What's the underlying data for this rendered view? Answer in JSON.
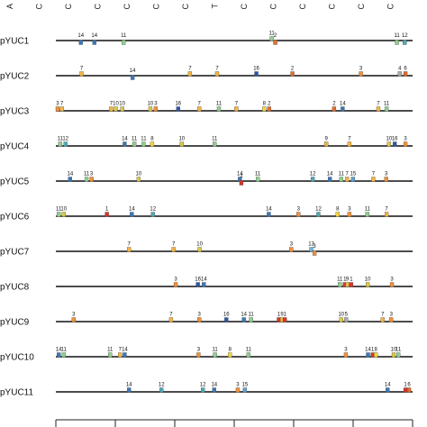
{
  "top_header": [
    "A",
    "C",
    "C",
    "C",
    "C",
    "C",
    "C",
    "T",
    "C",
    "C",
    "C",
    "C",
    "C",
    "C"
  ],
  "colors": {
    "1": "#d9342b",
    "2": "#e0702f",
    "3": "#f0913a",
    "6": "#e06a2e",
    "7": "#f3b544",
    "8": "#f2d640",
    "9": "#e6b83c",
    "10": "#d8c84a",
    "11": "#8fcf8f",
    "12": "#4fa9b5",
    "13": "#6fb6d8",
    "14": "#3b78b8",
    "15": "#5ea0d0",
    "16": "#2b55a8",
    "default": "#aaaaaa"
  },
  "promoters": [
    {
      "name": "pYUC1",
      "sites": [
        {
          "n": "14",
          "x": 0.07,
          "pos": "bot"
        },
        {
          "n": "14",
          "x": 0.108,
          "pos": "bot"
        },
        {
          "n": "11",
          "x": 0.19,
          "pos": "bot"
        },
        {
          "n": "11",
          "x": 0.605,
          "pos": "top"
        },
        {
          "n": "2",
          "x": 0.615,
          "pos": "bot"
        },
        {
          "n": "11",
          "x": 0.956,
          "pos": "bot"
        },
        {
          "n": "12",
          "x": 0.978,
          "pos": "bot"
        }
      ]
    },
    {
      "name": "pYUC2",
      "sites": [
        {
          "n": "7",
          "x": 0.072,
          "pos": "top"
        },
        {
          "n": "14",
          "x": 0.215,
          "pos": "bot"
        },
        {
          "n": "7",
          "x": 0.376,
          "pos": "top"
        },
        {
          "n": "7",
          "x": 0.452,
          "pos": "top"
        },
        {
          "n": "16",
          "x": 0.562,
          "pos": "top"
        },
        {
          "n": "2",
          "x": 0.663,
          "pos": "top"
        },
        {
          "n": "3",
          "x": 0.855,
          "pos": "top"
        },
        {
          "n": "4",
          "x": 0.964,
          "pos": "top"
        },
        {
          "n": "6",
          "x": 0.98,
          "pos": "top"
        }
      ]
    },
    {
      "name": "pYUC3",
      "sites": [
        {
          "n": "3",
          "x": 0.005,
          "pos": "top"
        },
        {
          "n": "7",
          "x": 0.017,
          "pos": "top"
        },
        {
          "n": "7",
          "x": 0.155,
          "pos": "top"
        },
        {
          "n": "10",
          "x": 0.168,
          "pos": "top"
        },
        {
          "n": "10",
          "x": 0.186,
          "pos": "top"
        },
        {
          "n": "10",
          "x": 0.265,
          "pos": "top"
        },
        {
          "n": "3",
          "x": 0.28,
          "pos": "top"
        },
        {
          "n": "16",
          "x": 0.343,
          "pos": "top"
        },
        {
          "n": "7",
          "x": 0.402,
          "pos": "top"
        },
        {
          "n": "11",
          "x": 0.457,
          "pos": "top"
        },
        {
          "n": "7",
          "x": 0.506,
          "pos": "top"
        },
        {
          "n": "8",
          "x": 0.584,
          "pos": "top"
        },
        {
          "n": "2",
          "x": 0.598,
          "pos": "top"
        },
        {
          "n": "2",
          "x": 0.78,
          "pos": "top"
        },
        {
          "n": "14",
          "x": 0.804,
          "pos": "top"
        },
        {
          "n": "7",
          "x": 0.904,
          "pos": "top"
        },
        {
          "n": "11",
          "x": 0.927,
          "pos": "top"
        }
      ]
    },
    {
      "name": "pYUC4",
      "sites": [
        {
          "n": "11",
          "x": 0.012,
          "pos": "top"
        },
        {
          "n": "12",
          "x": 0.027,
          "pos": "top"
        },
        {
          "n": "14",
          "x": 0.193,
          "pos": "top"
        },
        {
          "n": "11",
          "x": 0.22,
          "pos": "top"
        },
        {
          "n": "11",
          "x": 0.246,
          "pos": "top"
        },
        {
          "n": "8",
          "x": 0.27,
          "pos": "top"
        },
        {
          "n": "10",
          "x": 0.353,
          "pos": "top"
        },
        {
          "n": "11",
          "x": 0.445,
          "pos": "top"
        },
        {
          "n": "9",
          "x": 0.758,
          "pos": "top"
        },
        {
          "n": "7",
          "x": 0.823,
          "pos": "top"
        },
        {
          "n": "10",
          "x": 0.934,
          "pos": "top"
        },
        {
          "n": "16",
          "x": 0.95,
          "pos": "top"
        },
        {
          "n": "3",
          "x": 0.98,
          "pos": "top"
        }
      ]
    },
    {
      "name": "pYUC5",
      "sites": [
        {
          "n": "14",
          "x": 0.04,
          "pos": "top"
        },
        {
          "n": "11",
          "x": 0.086,
          "pos": "top"
        },
        {
          "n": "3",
          "x": 0.1,
          "pos": "top"
        },
        {
          "n": "10",
          "x": 0.232,
          "pos": "top"
        },
        {
          "n": "14",
          "x": 0.516,
          "pos": "top"
        },
        {
          "n": "1",
          "x": 0.52,
          "pos": "bot"
        },
        {
          "n": "11",
          "x": 0.566,
          "pos": "top"
        },
        {
          "n": "12",
          "x": 0.72,
          "pos": "top"
        },
        {
          "n": "14",
          "x": 0.768,
          "pos": "top"
        },
        {
          "n": "11",
          "x": 0.8,
          "pos": "top"
        },
        {
          "n": "7",
          "x": 0.816,
          "pos": "top"
        },
        {
          "n": "15",
          "x": 0.833,
          "pos": "top"
        },
        {
          "n": "7",
          "x": 0.89,
          "pos": "top"
        },
        {
          "n": "3",
          "x": 0.926,
          "pos": "top"
        }
      ]
    },
    {
      "name": "pYUC6",
      "sites": [
        {
          "n": "11",
          "x": 0.008,
          "pos": "top"
        },
        {
          "n": "10",
          "x": 0.022,
          "pos": "top"
        },
        {
          "n": "1",
          "x": 0.143,
          "pos": "top"
        },
        {
          "n": "14",
          "x": 0.213,
          "pos": "top"
        },
        {
          "n": "12",
          "x": 0.272,
          "pos": "top"
        },
        {
          "n": "14",
          "x": 0.597,
          "pos": "top"
        },
        {
          "n": "3",
          "x": 0.68,
          "pos": "top"
        },
        {
          "n": "12",
          "x": 0.736,
          "pos": "top"
        },
        {
          "n": "8",
          "x": 0.79,
          "pos": "top"
        },
        {
          "n": "3",
          "x": 0.823,
          "pos": "top"
        },
        {
          "n": "11",
          "x": 0.873,
          "pos": "top"
        },
        {
          "n": "7",
          "x": 0.927,
          "pos": "top"
        }
      ]
    },
    {
      "name": "pYUC7",
      "sites": [
        {
          "n": "7",
          "x": 0.205,
          "pos": "top"
        },
        {
          "n": "7",
          "x": 0.33,
          "pos": "top"
        },
        {
          "n": "10",
          "x": 0.403,
          "pos": "top"
        },
        {
          "n": "3",
          "x": 0.66,
          "pos": "top"
        },
        {
          "n": "13",
          "x": 0.716,
          "pos": "top"
        },
        {
          "n": "3",
          "x": 0.725,
          "pos": "bot"
        }
      ]
    },
    {
      "name": "pYUC8",
      "sites": [
        {
          "n": "3",
          "x": 0.336,
          "pos": "top"
        },
        {
          "n": "16",
          "x": 0.398,
          "pos": "top"
        },
        {
          "n": "14",
          "x": 0.415,
          "pos": "top"
        },
        {
          "n": "11",
          "x": 0.796,
          "pos": "top"
        },
        {
          "n": "1",
          "x": 0.81,
          "pos": "top"
        },
        {
          "n": "9",
          "x": 0.817,
          "pos": "top"
        },
        {
          "n": "1",
          "x": 0.828,
          "pos": "top"
        },
        {
          "n": "10",
          "x": 0.874,
          "pos": "top"
        },
        {
          "n": "3",
          "x": 0.942,
          "pos": "top"
        }
      ]
    },
    {
      "name": "pYUC9",
      "sites": [
        {
          "n": "3",
          "x": 0.05,
          "pos": "top"
        },
        {
          "n": "7",
          "x": 0.323,
          "pos": "top"
        },
        {
          "n": "3",
          "x": 0.402,
          "pos": "top"
        },
        {
          "n": "16",
          "x": 0.478,
          "pos": "top"
        },
        {
          "n": "14",
          "x": 0.527,
          "pos": "top"
        },
        {
          "n": "11",
          "x": 0.547,
          "pos": "top"
        },
        {
          "n": "1",
          "x": 0.625,
          "pos": "top"
        },
        {
          "n": "9",
          "x": 0.634,
          "pos": "top"
        },
        {
          "n": "1",
          "x": 0.642,
          "pos": "top"
        },
        {
          "n": "10",
          "x": 0.8,
          "pos": "top"
        },
        {
          "n": "5",
          "x": 0.814,
          "pos": "top"
        },
        {
          "n": "7",
          "x": 0.916,
          "pos": "top"
        },
        {
          "n": "3",
          "x": 0.94,
          "pos": "top"
        }
      ]
    },
    {
      "name": "pYUC10",
      "sites": [
        {
          "n": "14",
          "x": 0.008,
          "pos": "top"
        },
        {
          "n": "11",
          "x": 0.022,
          "pos": "top"
        },
        {
          "n": "11",
          "x": 0.152,
          "pos": "top"
        },
        {
          "n": "7",
          "x": 0.18,
          "pos": "top"
        },
        {
          "n": "14",
          "x": 0.193,
          "pos": "top"
        },
        {
          "n": "3",
          "x": 0.4,
          "pos": "top"
        },
        {
          "n": "11",
          "x": 0.446,
          "pos": "top"
        },
        {
          "n": "8",
          "x": 0.488,
          "pos": "top"
        },
        {
          "n": "11",
          "x": 0.54,
          "pos": "top"
        },
        {
          "n": "3",
          "x": 0.813,
          "pos": "top"
        },
        {
          "n": "14",
          "x": 0.875,
          "pos": "top"
        },
        {
          "n": "1",
          "x": 0.888,
          "pos": "top"
        },
        {
          "n": "8",
          "x": 0.897,
          "pos": "top"
        },
        {
          "n": "10",
          "x": 0.947,
          "pos": "top"
        },
        {
          "n": "11",
          "x": 0.96,
          "pos": "top"
        }
      ]
    },
    {
      "name": "pYUC11",
      "sites": [
        {
          "n": "14",
          "x": 0.205,
          "pos": "top"
        },
        {
          "n": "12",
          "x": 0.296,
          "pos": "top"
        },
        {
          "n": "12",
          "x": 0.412,
          "pos": "top"
        },
        {
          "n": "14",
          "x": 0.444,
          "pos": "top"
        },
        {
          "n": "3",
          "x": 0.51,
          "pos": "top"
        },
        {
          "n": "15",
          "x": 0.53,
          "pos": "top"
        },
        {
          "n": "14",
          "x": 0.93,
          "pos": "top"
        },
        {
          "n": "1",
          "x": 0.98,
          "pos": "top"
        },
        {
          "n": "6",
          "x": 0.99,
          "pos": "top"
        }
      ]
    }
  ]
}
